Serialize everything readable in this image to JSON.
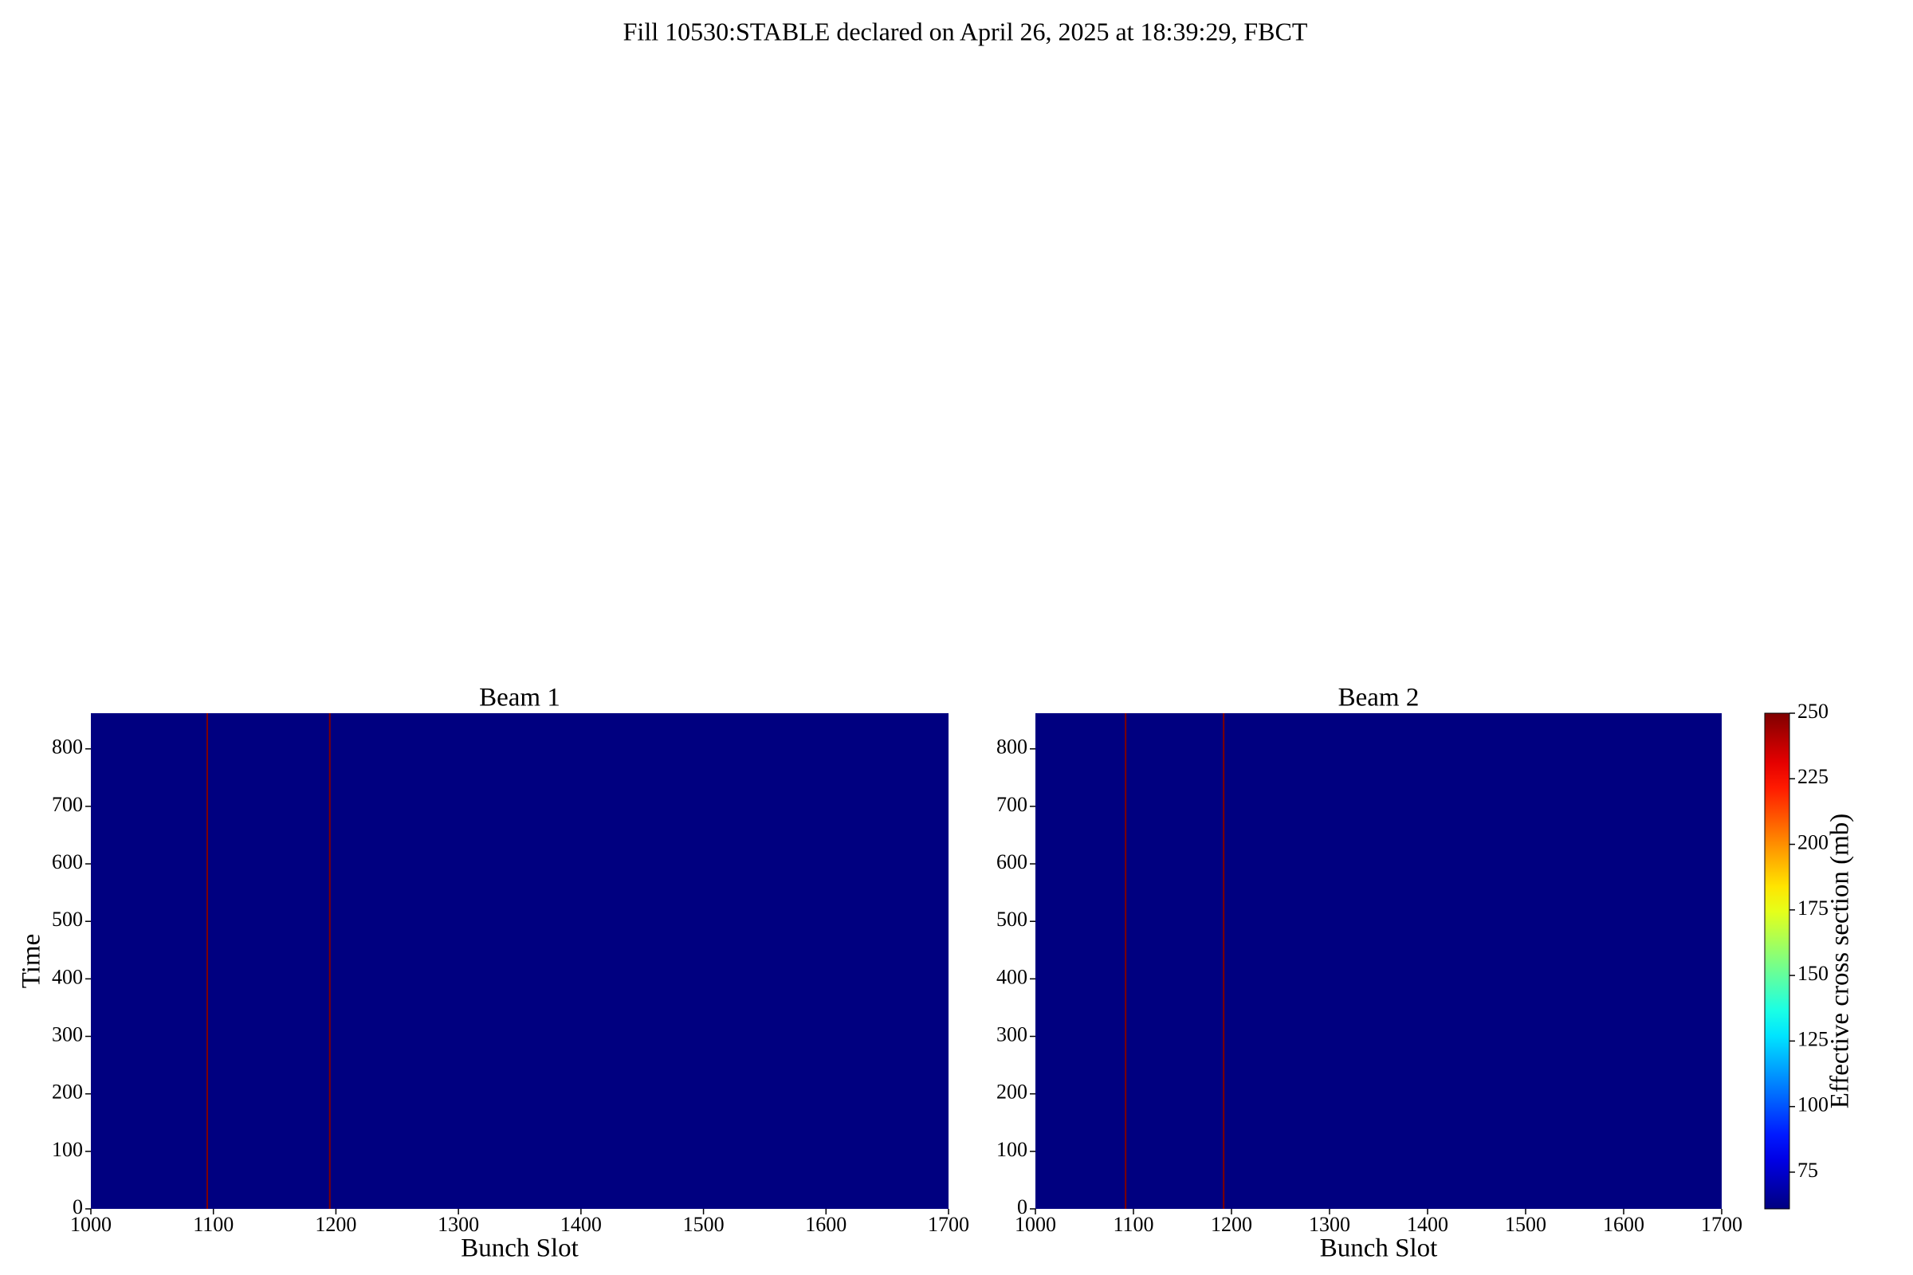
{
  "title": "Fill 10530:STABLE declared on April 26, 2025 at 18:39:29, FBCT",
  "chart_data": [
    {
      "type": "heatmap",
      "title": "Beam 1",
      "x_label": "Bunch Slot",
      "y_label": "Time",
      "xlim": [
        1000,
        1700
      ],
      "ylim": [
        0,
        862
      ],
      "xticks": [
        1000,
        1100,
        1200,
        1300,
        1400,
        1500,
        1600,
        1700
      ],
      "yticks": [
        0,
        100,
        200,
        300,
        400,
        500,
        600,
        700,
        800
      ],
      "base_value": 61,
      "columns": [
        1095,
        1195
      ],
      "column_values": [
        250,
        250
      ]
    },
    {
      "type": "heatmap",
      "title": "Beam 2",
      "x_label": "Bunch Slot",
      "xlim": [
        1000,
        1700
      ],
      "ylim": [
        0,
        862
      ],
      "xticks": [
        1000,
        1100,
        1200,
        1300,
        1400,
        1500,
        1600,
        1700
      ],
      "yticks": [
        0,
        100,
        200,
        300,
        400,
        500,
        600,
        700,
        800
      ],
      "base_value": 61,
      "columns": [
        1092,
        1192
      ],
      "column_values": [
        250,
        250
      ]
    }
  ],
  "colorbar": {
    "label": "Effective cross section (mb)",
    "colormap": "jet",
    "clim": [
      61,
      250
    ],
    "ticks": [
      75,
      100,
      125,
      150,
      175,
      200,
      225,
      250
    ]
  }
}
